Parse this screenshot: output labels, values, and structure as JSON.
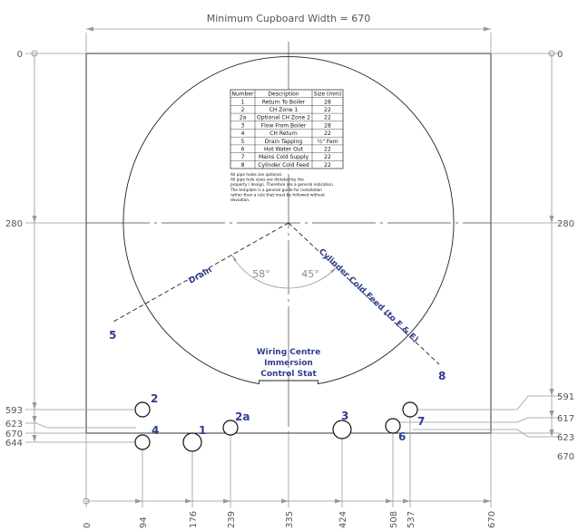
{
  "title": "Minimum Cupboard Width = 670",
  "left_scale": [
    "0",
    "280",
    "593",
    "623",
    "644",
    "670"
  ],
  "right_scale": [
    "0",
    "280",
    "591",
    "617",
    "623",
    "670"
  ],
  "bottom_scale": [
    "0",
    "94",
    "176",
    "239",
    "335",
    "424",
    "508",
    "537",
    "670"
  ],
  "angles": {
    "left": "58°",
    "right": "45°"
  },
  "diagonal_labels": {
    "drain": "Drain",
    "cold_feed": "Cylinder Cold Feed  (to E & E)"
  },
  "pipe_numbers": {
    "drain": "5",
    "cold_feed": "8",
    "hole_2": "2",
    "hole_4": "4",
    "hole_1": "1",
    "hole_2a": "2a",
    "hole_3": "3",
    "hole_6": "6",
    "hole_7": "7"
  },
  "wiring_centre": [
    "Wiring Centre",
    "Immersion",
    "Control Stat"
  ],
  "table": {
    "headers": [
      "Number",
      "Description",
      "Size (mm)"
    ],
    "rows": [
      [
        "1",
        "Return To Boiler",
        "28"
      ],
      [
        "2",
        "CH Zone 1",
        "22"
      ],
      [
        "2a",
        "Optional CH Zone 2",
        "22"
      ],
      [
        "3",
        "Flow From Boiler",
        "28"
      ],
      [
        "4",
        "CH Return",
        "22"
      ],
      [
        "5",
        "Drain Tapping",
        "½\" Fem"
      ],
      [
        "6",
        "Hot Water Out",
        "22"
      ],
      [
        "7",
        "Mains Cold Supply",
        "22"
      ],
      [
        "8",
        "Cylinder Cold Feed",
        "22"
      ]
    ]
  },
  "notes": [
    "All pipe holes are optional.",
    "All pipe hole sizes are dictated by the",
    "  property / design. Therefore are a general indication.",
    "The template is a general guide for installation",
    "  rather than a rule that must be followed without",
    "  deviation."
  ],
  "colors": {
    "label_blue": "#2e3d8f",
    "dimension_grey": "#999999",
    "outline": "#222222"
  }
}
